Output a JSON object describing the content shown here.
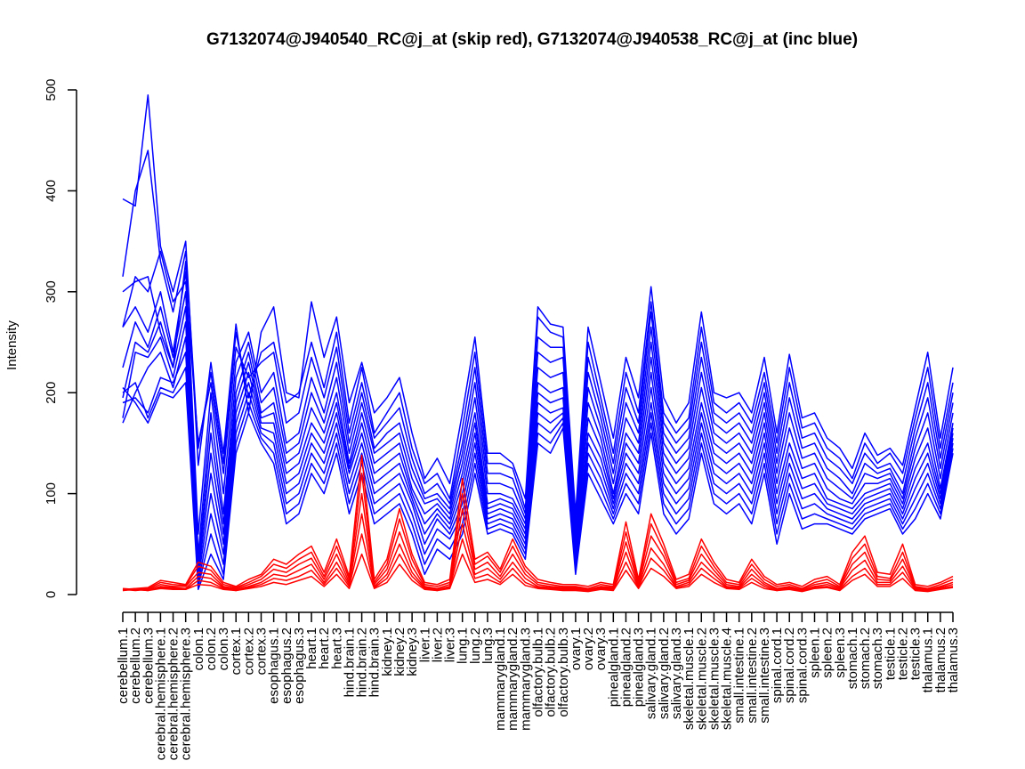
{
  "chart_data": {
    "type": "line",
    "title": "G7132074@J940540_RC@j_at (skip red), G7132074@J940538_RC@j_at (inc blue)",
    "xlabel": "",
    "ylabel": "Intensity",
    "ylim": [
      0,
      500
    ],
    "yticks": [
      0,
      100,
      200,
      300,
      400,
      500
    ],
    "grid": false,
    "legend": "none",
    "colors": {
      "skip": "#ff0000",
      "inc": "#0000ff"
    },
    "categories": [
      "cerebellum.1",
      "cerebellum.2",
      "cerebellum.3",
      "cerebral.hemisphere.1",
      "cerebral.hemisphere.2",
      "cerebral.hemisphere.3",
      "colon.1",
      "colon.2",
      "colon.3",
      "cortex.1",
      "cortex.2",
      "cortex.3",
      "esophagus.1",
      "esophagus.2",
      "esophagus.3",
      "heart.1",
      "heart.2",
      "heart.3",
      "hind.brain.1",
      "hind.brain.2",
      "hind.brain.3",
      "kidney.1",
      "kidney.2",
      "kidney.3",
      "liver.1",
      "liver.2",
      "liver.3",
      "lung.1",
      "lung.2",
      "lung.3",
      "mammarygland.1",
      "mammarygland.2",
      "mammarygland.3",
      "olfactory.bulb.1",
      "olfactory.bulb.2",
      "olfactory.bulb.3",
      "ovary.1",
      "ovary.2",
      "ovary.3",
      "pinealgland.1",
      "pinealgland.2",
      "pinealgland.3",
      "salivary.gland.1",
      "salivary.gland.2",
      "salivary.gland.3",
      "skeletal.muscle.1",
      "skeletal.muscle.2",
      "skeletal.muscle.3",
      "skeletal.muscle.4",
      "small.intestine.1",
      "small.intestine.2",
      "small.intestine.3",
      "spinal.cord.1",
      "spinal.cord.2",
      "spinal.cord.3",
      "spleen.1",
      "spleen.2",
      "spleen.3",
      "stomach.1",
      "stomach.2",
      "stomach.3",
      "testicle.1",
      "testicle.2",
      "testicle.3",
      "thalamus.1",
      "thalamus.2",
      "thalamus.3"
    ],
    "series_blue": [
      [
        392,
        385,
        495,
        345,
        300,
        350,
        128,
        230,
        140,
        268,
        180,
        260,
        285,
        200,
        195,
        290,
        235,
        275,
        190,
        230,
        180,
        195,
        215,
        160,
        115,
        135,
        110,
        180,
        255,
        140,
        140,
        130,
        95,
        285,
        268,
        265,
        80,
        265,
        210,
        155,
        235,
        195,
        305,
        195,
        170,
        190,
        280,
        200,
        195,
        200,
        180,
        235,
        160,
        238,
        175,
        180,
        155,
        145,
        125,
        160,
        138,
        145,
        128,
        185,
        240,
        155,
        225
      ],
      [
        315,
        400,
        440,
        330,
        280,
        340,
        145,
        220,
        130,
        260,
        195,
        240,
        250,
        190,
        200,
        250,
        205,
        260,
        170,
        225,
        160,
        180,
        200,
        145,
        110,
        120,
        95,
        165,
        240,
        130,
        130,
        125,
        85,
        275,
        260,
        255,
        70,
        250,
        195,
        140,
        220,
        180,
        290,
        180,
        160,
        175,
        265,
        190,
        180,
        190,
        170,
        220,
        150,
        225,
        165,
        170,
        145,
        135,
        115,
        150,
        130,
        140,
        120,
        175,
        225,
        145,
        210
      ],
      [
        265,
        315,
        300,
        340,
        290,
        310,
        150,
        210,
        120,
        245,
        215,
        230,
        240,
        170,
        180,
        235,
        195,
        245,
        160,
        210,
        155,
        170,
        185,
        135,
        100,
        110,
        90,
        150,
        225,
        120,
        120,
        115,
        80,
        255,
        245,
        245,
        65,
        235,
        185,
        130,
        205,
        170,
        280,
        170,
        150,
        165,
        250,
        180,
        170,
        180,
        160,
        210,
        140,
        210,
        155,
        160,
        135,
        125,
        110,
        140,
        125,
        130,
        110,
        165,
        210,
        135,
        200
      ],
      [
        300,
        310,
        315,
        260,
        225,
        330,
        60,
        200,
        100,
        230,
        260,
        200,
        220,
        150,
        160,
        215,
        180,
        230,
        150,
        200,
        145,
        160,
        170,
        125,
        95,
        100,
        85,
        140,
        210,
        110,
        110,
        105,
        75,
        240,
        230,
        235,
        60,
        220,
        175,
        120,
        190,
        160,
        265,
        160,
        140,
        155,
        235,
        170,
        160,
        170,
        150,
        200,
        130,
        195,
        145,
        150,
        125,
        115,
        100,
        130,
        120,
        125,
        100,
        155,
        195,
        125,
        190
      ],
      [
        265,
        285,
        260,
        300,
        240,
        320,
        40,
        180,
        80,
        215,
        250,
        190,
        205,
        140,
        150,
        200,
        170,
        215,
        140,
        190,
        140,
        150,
        160,
        115,
        90,
        95,
        80,
        130,
        195,
        100,
        100,
        95,
        70,
        225,
        215,
        220,
        55,
        205,
        165,
        110,
        175,
        150,
        250,
        150,
        130,
        145,
        220,
        160,
        150,
        160,
        140,
        190,
        120,
        180,
        135,
        140,
        115,
        105,
        95,
        120,
        115,
        120,
        95,
        145,
        180,
        115,
        180
      ],
      [
        225,
        270,
        245,
        285,
        235,
        300,
        30,
        160,
        70,
        200,
        240,
        180,
        190,
        130,
        140,
        185,
        160,
        200,
        130,
        180,
        130,
        140,
        150,
        105,
        80,
        90,
        75,
        120,
        180,
        90,
        95,
        90,
        65,
        210,
        200,
        205,
        50,
        190,
        155,
        100,
        160,
        140,
        235,
        140,
        120,
        135,
        205,
        150,
        140,
        150,
        130,
        180,
        110,
        165,
        125,
        130,
        105,
        95,
        90,
        110,
        110,
        115,
        90,
        135,
        165,
        105,
        170
      ],
      [
        195,
        250,
        240,
        270,
        225,
        285,
        25,
        140,
        60,
        190,
        230,
        175,
        180,
        120,
        130,
        170,
        150,
        190,
        125,
        170,
        120,
        130,
        140,
        100,
        70,
        85,
        70,
        110,
        170,
        85,
        90,
        85,
        60,
        200,
        190,
        195,
        45,
        175,
        145,
        95,
        150,
        130,
        220,
        130,
        110,
        125,
        190,
        140,
        130,
        140,
        120,
        170,
        100,
        150,
        115,
        120,
        95,
        90,
        85,
        100,
        105,
        110,
        85,
        125,
        150,
        100,
        165
      ],
      [
        175,
        240,
        235,
        255,
        215,
        270,
        20,
        120,
        50,
        180,
        220,
        170,
        170,
        110,
        120,
        160,
        140,
        180,
        120,
        160,
        110,
        120,
        130,
        95,
        60,
        80,
        65,
        100,
        160,
        80,
        85,
        80,
        55,
        190,
        180,
        185,
        40,
        160,
        135,
        90,
        140,
        120,
        205,
        120,
        100,
        115,
        180,
        130,
        120,
        130,
        110,
        160,
        90,
        140,
        105,
        110,
        90,
        85,
        80,
        95,
        100,
        105,
        80,
        115,
        140,
        95,
        160
      ],
      [
        170,
        200,
        225,
        240,
        205,
        255,
        15,
        100,
        40,
        170,
        210,
        165,
        160,
        100,
        110,
        150,
        130,
        170,
        110,
        150,
        100,
        110,
        120,
        90,
        50,
        75,
        60,
        90,
        150,
        75,
        80,
        75,
        50,
        180,
        170,
        180,
        35,
        150,
        125,
        85,
        130,
        110,
        190,
        110,
        90,
        105,
        170,
        120,
        110,
        120,
        100,
        150,
        80,
        130,
        95,
        100,
        85,
        80,
        75,
        90,
        95,
        100,
        75,
        105,
        130,
        90,
        155
      ],
      [
        190,
        195,
        180,
        215,
        210,
        240,
        10,
        80,
        30,
        160,
        200,
        160,
        150,
        90,
        100,
        140,
        120,
        160,
        100,
        140,
        90,
        100,
        110,
        80,
        40,
        65,
        55,
        80,
        140,
        70,
        75,
        70,
        45,
        170,
        160,
        175,
        30,
        140,
        115,
        80,
        120,
        100,
        180,
        100,
        80,
        95,
        160,
        110,
        100,
        110,
        90,
        140,
        70,
        120,
        85,
        90,
        80,
        75,
        70,
        85,
        90,
        95,
        70,
        95,
        120,
        85,
        150
      ],
      [
        200,
        210,
        175,
        205,
        200,
        225,
        8,
        60,
        20,
        150,
        190,
        155,
        140,
        80,
        90,
        130,
        110,
        150,
        90,
        130,
        80,
        90,
        100,
        70,
        30,
        55,
        45,
        70,
        130,
        65,
        70,
        65,
        40,
        160,
        150,
        170,
        25,
        130,
        105,
        75,
        110,
        90,
        170,
        90,
        70,
        85,
        150,
        100,
        90,
        100,
        80,
        130,
        60,
        110,
        75,
        80,
        75,
        70,
        65,
        80,
        85,
        90,
        65,
        85,
        110,
        80,
        145
      ],
      [
        205,
        190,
        170,
        200,
        195,
        210,
        5,
        40,
        15,
        140,
        180,
        150,
        130,
        70,
        80,
        120,
        100,
        140,
        80,
        120,
        70,
        80,
        90,
        60,
        20,
        45,
        35,
        60,
        120,
        60,
        65,
        60,
        35,
        150,
        140,
        165,
        20,
        120,
        95,
        70,
        100,
        80,
        160,
        80,
        60,
        75,
        140,
        90,
        80,
        90,
        70,
        120,
        50,
        100,
        65,
        70,
        70,
        65,
        60,
        75,
        80,
        85,
        60,
        75,
        100,
        75,
        140
      ]
    ],
    "series_red": [
      [
        5,
        6,
        7,
        14,
        12,
        10,
        32,
        28,
        12,
        8,
        15,
        20,
        35,
        30,
        40,
        48,
        22,
        55,
        18,
        138,
        15,
        35,
        85,
        40,
        12,
        10,
        15,
        115,
        35,
        42,
        25,
        55,
        28,
        15,
        12,
        10,
        10,
        8,
        12,
        10,
        72,
        15,
        80,
        50,
        15,
        20,
        55,
        32,
        15,
        12,
        35,
        18,
        10,
        12,
        8,
        15,
        18,
        10,
        42,
        58,
        22,
        20,
        50,
        10,
        8,
        12,
        18
      ],
      [
        4,
        5,
        6,
        12,
        10,
        9,
        28,
        24,
        10,
        7,
        12,
        18,
        30,
        26,
        35,
        42,
        18,
        48,
        15,
        120,
        12,
        30,
        75,
        35,
        10,
        8,
        12,
        100,
        30,
        38,
        22,
        48,
        24,
        12,
        10,
        8,
        8,
        6,
        10,
        8,
        62,
        12,
        70,
        44,
        12,
        16,
        48,
        28,
        12,
        10,
        30,
        15,
        8,
        10,
        6,
        12,
        15,
        8,
        36,
        50,
        18,
        16,
        42,
        8,
        6,
        10,
        15
      ],
      [
        5,
        4,
        5,
        10,
        8,
        8,
        22,
        20,
        8,
        6,
        10,
        15,
        25,
        22,
        30,
        36,
        15,
        40,
        12,
        100,
        10,
        25,
        62,
        28,
        8,
        6,
        10,
        85,
        25,
        32,
        18,
        40,
        20,
        10,
        8,
        7,
        7,
        5,
        8,
        7,
        52,
        10,
        58,
        38,
        10,
        14,
        40,
        24,
        10,
        8,
        25,
        12,
        6,
        8,
        5,
        10,
        12,
        7,
        30,
        42,
        15,
        14,
        35,
        7,
        5,
        8,
        12
      ],
      [
        6,
        5,
        4,
        8,
        7,
        6,
        18,
        16,
        7,
        5,
        8,
        12,
        20,
        18,
        24,
        30,
        12,
        32,
        10,
        80,
        8,
        20,
        50,
        22,
        7,
        5,
        8,
        70,
        20,
        26,
        15,
        32,
        16,
        8,
        7,
        6,
        6,
        4,
        7,
        6,
        42,
        8,
        46,
        30,
        8,
        12,
        32,
        20,
        8,
        7,
        20,
        10,
        5,
        7,
        4,
        8,
        10,
        6,
        24,
        34,
        12,
        12,
        28,
        6,
        4,
        7,
        10
      ],
      [
        4,
        6,
        5,
        7,
        6,
        5,
        14,
        12,
        6,
        4,
        7,
        10,
        16,
        14,
        18,
        24,
        10,
        26,
        8,
        60,
        7,
        16,
        40,
        18,
        6,
        4,
        7,
        55,
        16,
        20,
        12,
        26,
        12,
        7,
        6,
        5,
        5,
        4,
        6,
        5,
        32,
        7,
        36,
        24,
        7,
        10,
        26,
        16,
        7,
        6,
        16,
        8,
        4,
        6,
        4,
        7,
        8,
        5,
        18,
        26,
        10,
        10,
        22,
        5,
        4,
        6,
        8
      ],
      [
        5,
        5,
        4,
        6,
        5,
        5,
        10,
        9,
        5,
        4,
        6,
        8,
        12,
        10,
        14,
        18,
        8,
        20,
        6,
        40,
        6,
        12,
        30,
        14,
        5,
        4,
        6,
        40,
        12,
        15,
        10,
        20,
        9,
        6,
        5,
        4,
        4,
        3,
        5,
        4,
        24,
        6,
        26,
        18,
        6,
        8,
        20,
        12,
        6,
        5,
        12,
        6,
        4,
        5,
        3,
        6,
        7,
        4,
        14,
        20,
        8,
        8,
        16,
        4,
        3,
        5,
        7
      ]
    ]
  }
}
